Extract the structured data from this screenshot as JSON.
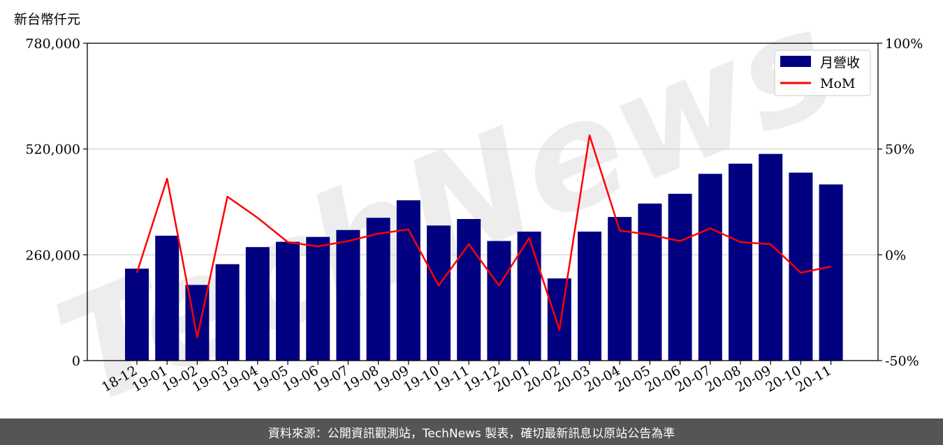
{
  "footer": {
    "source_text": "資料來源：公開資訊觀測站，TechNews 製表，確切最新訊息以原站公告為準"
  },
  "watermark": {
    "text": "TechNews"
  },
  "colors": {
    "bar": "#000080",
    "line": "#ff0000",
    "grid": "#d9d9d9",
    "watermark": "#e6e6e6",
    "watermark_accent": "#f7d4d4"
  },
  "chart_data": {
    "type": "bar",
    "y_unit_label": "新台幣仟元",
    "categories": [
      "18-12",
      "19-01",
      "19-02",
      "19-03",
      "19-04",
      "19-05",
      "19-06",
      "19-07",
      "19-08",
      "19-09",
      "19-10",
      "19-11",
      "19-12",
      "20-01",
      "20-02",
      "20-03",
      "20-04",
      "20-05",
      "20-06",
      "20-07",
      "20-08",
      "20-09",
      "20-10",
      "20-11"
    ],
    "series": [
      {
        "name": "月營收",
        "type": "bar",
        "axis": "left",
        "values": [
          226000,
          307000,
          186000,
          237000,
          279000,
          292000,
          304000,
          321000,
          351000,
          394000,
          332000,
          348000,
          294000,
          317000,
          202000,
          317000,
          353000,
          386000,
          410000,
          459000,
          484000,
          508000,
          462000,
          433000
        ]
      },
      {
        "name": "MoM",
        "type": "line",
        "axis": "right",
        "values": [
          -8.5,
          36,
          -39,
          27.5,
          17.5,
          6,
          4,
          6.5,
          10,
          12,
          -14.5,
          5,
          -14.5,
          8,
          -35.5,
          56.5,
          11.5,
          9.5,
          6.5,
          12.5,
          6,
          5,
          -8.5,
          -5.5
        ]
      }
    ],
    "y_left": {
      "min": 0,
      "max": 780000,
      "ticks": [
        "0",
        "260,000",
        "520,000",
        "780,000"
      ],
      "tick_values": [
        0,
        260000,
        520000,
        780000
      ]
    },
    "y_right": {
      "min": -50,
      "max": 100,
      "ticks": [
        "-50%",
        "0%",
        "50%",
        "100%"
      ],
      "tick_values": [
        -50,
        0,
        50,
        100
      ]
    },
    "grid": true,
    "legend_position": "top-right"
  }
}
